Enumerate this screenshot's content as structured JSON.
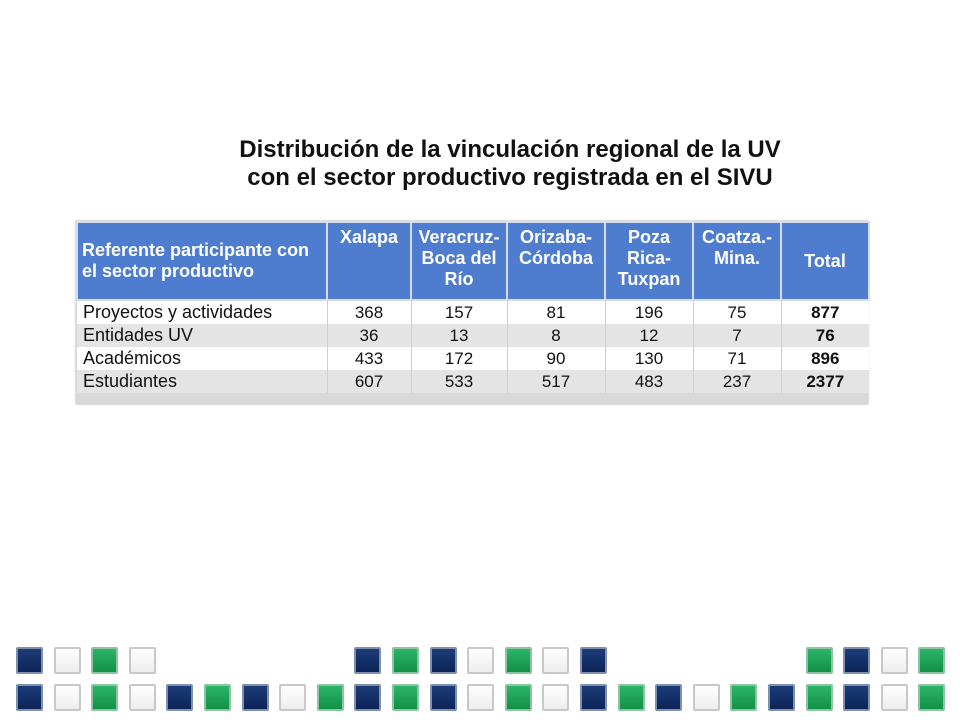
{
  "title_line1": "Distribución de la vinculación regional de la UV",
  "title_line2": "con el sector productivo registrada en el SIVU",
  "colors": {
    "header": "#4e7ccf",
    "navy": "#14306a",
    "green": "#1fa659"
  },
  "table": {
    "headers": [
      "Referente participante con el sector productivo",
      "Xalapa",
      "Veracruz-Boca del Río",
      "Orizaba-Córdoba",
      "Poza Rica-Tuxpan",
      "Coatza.-Mina.",
      "Total"
    ],
    "rows": [
      {
        "label": "Proyectos y actividades",
        "values": [
          "368",
          "157",
          "81",
          "196",
          "75",
          "877"
        ]
      },
      {
        "label": "Entidades UV",
        "values": [
          "36",
          "13",
          "8",
          "12",
          "7",
          "76"
        ]
      },
      {
        "label": "Académicos",
        "values": [
          "433",
          "172",
          "90",
          "130",
          "71",
          "896"
        ]
      },
      {
        "label": "Estudiantes",
        "values": [
          "607",
          "533",
          "517",
          "483",
          "237",
          "2377"
        ]
      }
    ]
  },
  "decor": {
    "row1": [
      "navy",
      "white",
      "green",
      "white",
      "",
      "",
      "",
      "",
      "",
      "navy",
      "green",
      "navy",
      "white",
      "green",
      "white",
      "navy",
      "",
      "",
      "",
      "",
      "",
      "green",
      "navy",
      "white",
      "green"
    ],
    "row2": [
      "navy",
      "white",
      "green",
      "white",
      "navy",
      "green",
      "navy",
      "white",
      "green",
      "navy",
      "green",
      "navy",
      "white",
      "green",
      "white",
      "navy",
      "green",
      "navy",
      "white",
      "green",
      "navy",
      "green",
      "navy",
      "white",
      "green"
    ]
  }
}
